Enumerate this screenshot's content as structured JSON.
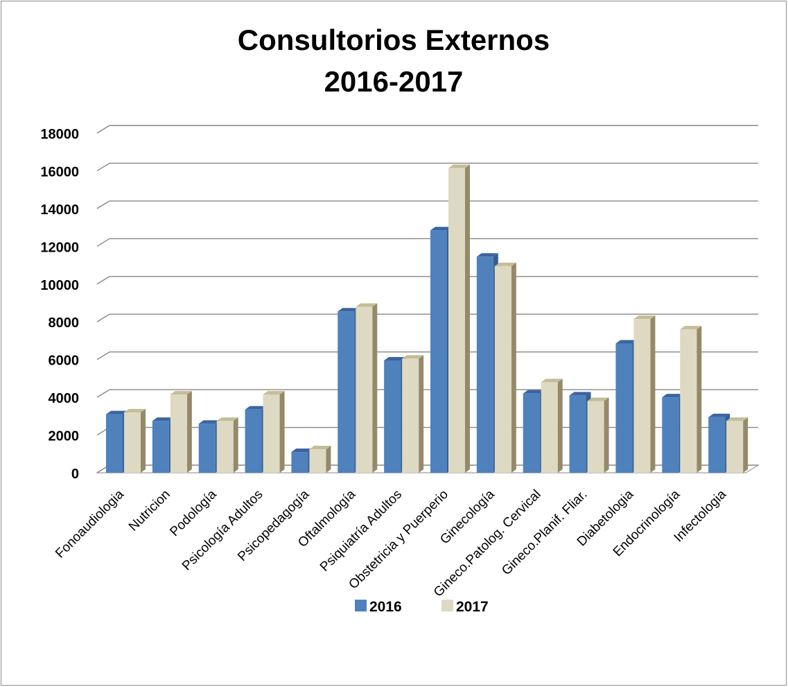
{
  "chart_data": {
    "type": "bar",
    "title": "Consultorios Externos",
    "subtitle": "2016-2017",
    "categories": [
      "Fonoaudiologia",
      "Nutricion",
      "Podología",
      "Psicología Adultos",
      "Psicopedagogía",
      "Oftalmología",
      "Psiquiatría Adultos",
      "Obstetricia y Puerperio",
      "Ginecología",
      "Gineco.Patolog. Cervical",
      "Gineco.Planif. Fliar.",
      "Diabetologia",
      "Endocrinología",
      "Infectologia"
    ],
    "series": [
      {
        "name": "2016",
        "color": "#4f81bd",
        "values": [
          3100,
          2750,
          2600,
          3350,
          1100,
          8550,
          5950,
          12850,
          11450,
          4200,
          4100,
          6850,
          4000,
          2950
        ]
      },
      {
        "name": "2017",
        "color": "#ddd9c3",
        "values": [
          3200,
          4150,
          2750,
          4150,
          1250,
          8800,
          6050,
          16150,
          10950,
          4800,
          3800,
          8150,
          7600,
          2750
        ]
      }
    ],
    "yticks": [
      "0",
      "2000",
      "4000",
      "6000",
      "8000",
      "10000",
      "12000",
      "14000",
      "16000",
      "18000"
    ],
    "ylim": [
      0,
      18000
    ],
    "grid": true,
    "legend_position": "bottom",
    "style": "3d-clustered-column"
  }
}
